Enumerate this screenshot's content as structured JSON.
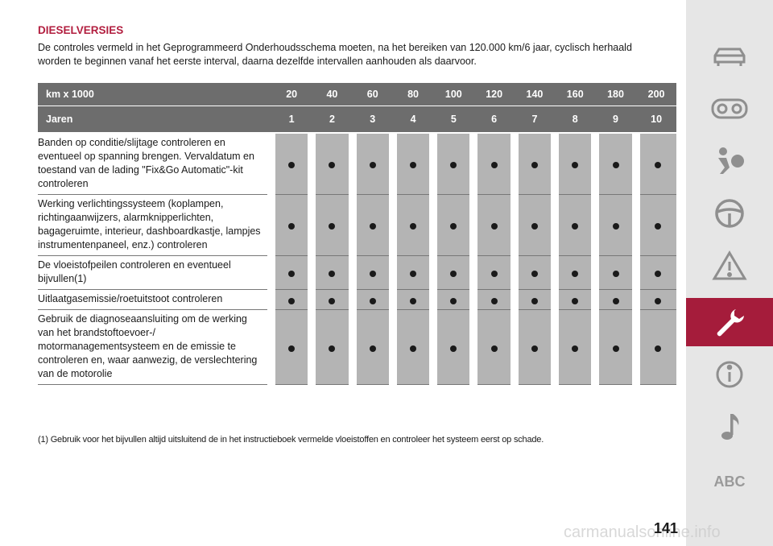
{
  "section": {
    "heading": "DIESELVERSIES",
    "intro": "De controles vermeld in het Geprogrammeerd Onderhoudsschema moeten, na het bereiken van 120.000 km/6 jaar, cyclisch herhaald worden te beginnen vanaf het eerste interval, daarna dezelfde intervallen aanhouden als daarvoor."
  },
  "table": {
    "km_label": "km x 1000",
    "km_values": [
      "20",
      "40",
      "60",
      "80",
      "100",
      "120",
      "140",
      "160",
      "180",
      "200"
    ],
    "years_label": "Jaren",
    "years_values": [
      "1",
      "2",
      "3",
      "4",
      "5",
      "6",
      "7",
      "8",
      "9",
      "10"
    ],
    "rows": [
      {
        "label": "Banden op conditie/slijtage controleren en eventueel op spanning brengen. Vervaldatum en toestand van de lading \"Fix&Go Automatic\"-kit controleren",
        "marks": [
          true,
          true,
          true,
          true,
          true,
          true,
          true,
          true,
          true,
          true
        ]
      },
      {
        "label": "Werking verlichtingssysteem (koplampen, richtingaanwijzers, alarmknipperlichten, bagageruimte, interieur, dashboardkastje, lampjes instrumentenpaneel, enz.) controleren",
        "marks": [
          true,
          true,
          true,
          true,
          true,
          true,
          true,
          true,
          true,
          true
        ]
      },
      {
        "label": "De vloeistofpeilen controleren en eventueel bijvullen(1)",
        "marks": [
          true,
          true,
          true,
          true,
          true,
          true,
          true,
          true,
          true,
          true
        ]
      },
      {
        "label": "Uitlaatgasemissie/roetuitstoot controleren",
        "marks": [
          true,
          true,
          true,
          true,
          true,
          true,
          true,
          true,
          true,
          true
        ]
      },
      {
        "label": "Gebruik de diagnoseaansluiting om de werking van het brandstoftoevoer-/ motormanagementsysteem en de emissie te controleren en, waar aanwezig, de verslechtering van de motorolie",
        "marks": [
          true,
          true,
          true,
          true,
          true,
          true,
          true,
          true,
          true,
          true
        ]
      }
    ]
  },
  "footnote": "(1) Gebruik voor het bijvullen altijd uitsluitend de in het instructieboek vermelde vloeistoffen en controleer het systeem eerst op schade.",
  "sidebar": {
    "icons": [
      "car-icon",
      "dashboard-gauge-icon",
      "airbag-passenger-icon",
      "steering-wheel-icon",
      "warning-triangle-icon",
      "wrench-icon",
      "settings-info-icon",
      "music-note-icon",
      "abc-index-icon"
    ],
    "active_index": 5,
    "abc_label": "ABC",
    "active_color": "#a51c3b"
  },
  "page_number": "141",
  "watermark": "carmanualsonline.info"
}
